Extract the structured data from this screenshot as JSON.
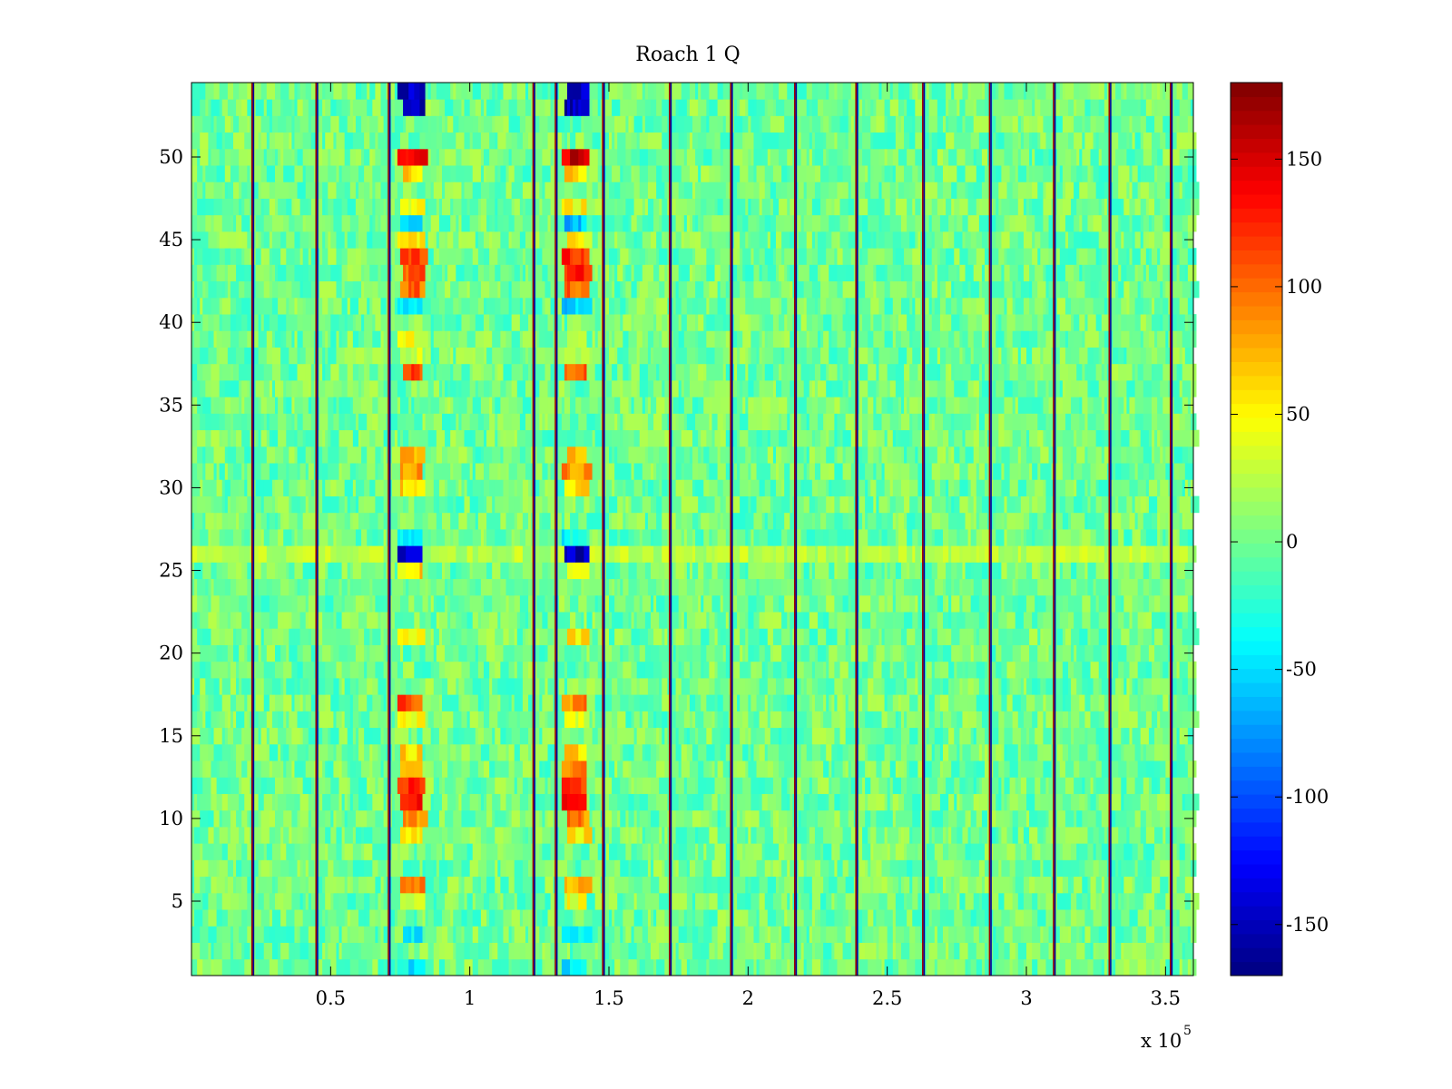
{
  "chart_data": {
    "type": "heatmap",
    "title": "Roach 1 Q",
    "xlabel": "",
    "ylabel": "",
    "x_exponent_label": "x 10",
    "x_exponent_power": "5",
    "x_scale": 100000,
    "xlim": [
      0,
      3.6
    ],
    "ylim": [
      0.5,
      54.5
    ],
    "x_ticks": [
      0.5,
      1,
      1.5,
      2,
      2.5,
      3,
      3.5
    ],
    "x_tick_labels": [
      "0.5",
      "1",
      "1.5",
      "2",
      "2.5",
      "3",
      "3.5"
    ],
    "y_ticks": [
      5,
      10,
      15,
      20,
      25,
      30,
      35,
      40,
      45,
      50
    ],
    "y_tick_labels": [
      "5",
      "10",
      "15",
      "20",
      "25",
      "30",
      "35",
      "40",
      "45",
      "50"
    ],
    "colorbar": {
      "colormap": "jet",
      "clim": [
        -170,
        180
      ],
      "ticks": [
        -150,
        -100,
        -50,
        0,
        50,
        100,
        150
      ],
      "tick_labels": [
        "-150",
        "-100",
        "-50",
        "0",
        "50",
        "100",
        "150"
      ]
    },
    "grid": false,
    "rows": 54,
    "background_level": 0,
    "noise_amplitude": 25,
    "vertical_spike_lines_x": [
      0.22,
      0.45,
      0.71,
      1.23,
      1.31,
      1.48,
      1.72,
      1.94,
      2.17,
      2.39,
      2.63,
      2.87,
      3.1,
      3.3,
      3.52
    ],
    "spike_value_high": 170,
    "spike_value_low": -160,
    "bright_bands": [
      {
        "x_range": [
          0.74,
          0.83
        ],
        "rows": {
          "54": -150,
          "53": -150,
          "50": 140,
          "49": 60,
          "47": 50,
          "46": -60,
          "45": 50,
          "44": 120,
          "43": 110,
          "42": 100,
          "41": -50,
          "39": 40,
          "38": 30,
          "37": 110,
          "32": 70,
          "31": 90,
          "30": 60,
          "27": -40,
          "26": -150,
          "25": 60,
          "21": 50,
          "17": 110,
          "16": 40,
          "14": 60,
          "13": 80,
          "12": 120,
          "11": 130,
          "10": 90,
          "9": 60,
          "6": 90,
          "5": 40,
          "3": -40,
          "1": -40
        }
      },
      {
        "x_range": [
          1.32,
          1.41
        ],
        "rows": {
          "54": -150,
          "53": -150,
          "50": 150,
          "49": 60,
          "47": 50,
          "46": -60,
          "45": 50,
          "44": 120,
          "43": 120,
          "42": 100,
          "41": -50,
          "39": 40,
          "38": 30,
          "37": 110,
          "32": 70,
          "31": 90,
          "30": 60,
          "27": -40,
          "26": -150,
          "25": 60,
          "21": 50,
          "17": 90,
          "16": 40,
          "14": 60,
          "13": 90,
          "12": 120,
          "11": 130,
          "10": 90,
          "9": 60,
          "6": 70,
          "5": 40,
          "3": -40,
          "1": -40
        }
      }
    ],
    "stripe_rows": [
      {
        "row": 24,
        "value": 0
      },
      {
        "row": 26,
        "value": 25
      }
    ]
  }
}
